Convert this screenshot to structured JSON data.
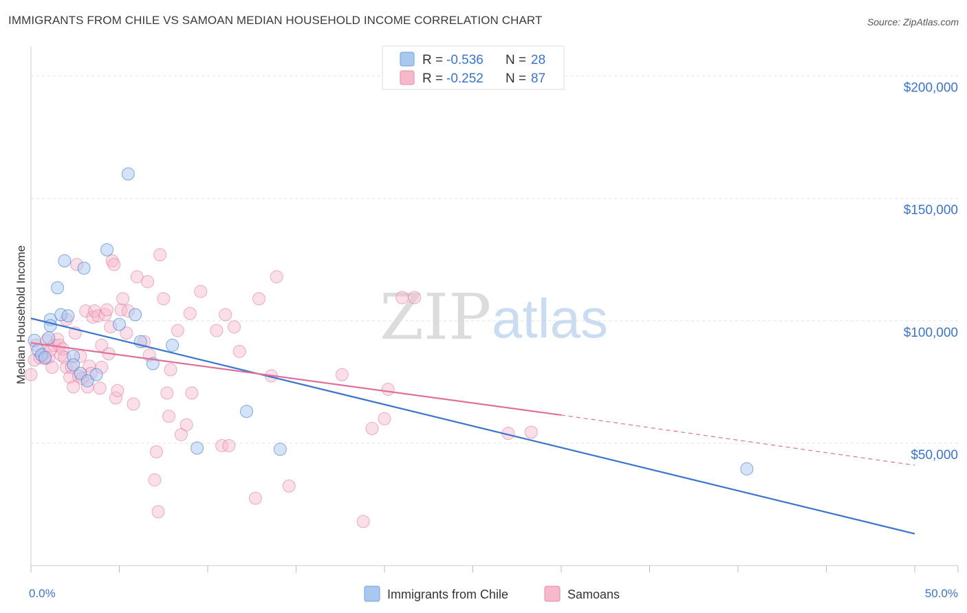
{
  "header": {
    "title": "IMMIGRANTS FROM CHILE VS SAMOAN MEDIAN HOUSEHOLD INCOME CORRELATION CHART",
    "source": "Source: ZipAtlas.com"
  },
  "watermark": {
    "part1": "ZIP",
    "part2": "atlas"
  },
  "stats": [
    {
      "r_label": "R =",
      "r": "-0.536",
      "n_label": "N =",
      "n": "28",
      "color": "#a9c8f0"
    },
    {
      "r_label": "R =",
      "r": "-0.252",
      "n_label": "N =",
      "n": "87",
      "color": "#f6b8cb"
    }
  ],
  "colors": {
    "blue": "#3a74cc",
    "pink": "#e07099",
    "blue_fill": "#a9c8f0",
    "pink_fill": "#f6b8cb",
    "grid": "#e4e4e4"
  },
  "chart_data": {
    "type": "scatter",
    "title": "IMMIGRANTS FROM CHILE VS SAMOAN MEDIAN HOUSEHOLD INCOME CORRELATION CHART",
    "xlabel": "",
    "ylabel": "Median Household Income",
    "xlim": [
      0,
      50
    ],
    "ylim": [
      0,
      210000
    ],
    "x_tick_labels": [
      "0.0%",
      "50.0%"
    ],
    "y_ticks": [
      50000,
      100000,
      150000,
      200000
    ],
    "y_tick_labels": [
      "$50,000",
      "$100,000",
      "$150,000",
      "$200,000"
    ],
    "grid": true,
    "legend_position": "bottom-center",
    "series": [
      {
        "name": "Immigrants from Chile",
        "r": -0.536,
        "n": 28,
        "trend": {
          "x": [
            0,
            50
          ],
          "y": [
            101000,
            13000
          ]
        },
        "points": [
          [
            0.2,
            92000
          ],
          [
            0.4,
            88000
          ],
          [
            0.6,
            86000
          ],
          [
            0.8,
            85000
          ],
          [
            1.0,
            93000
          ],
          [
            1.1,
            100500
          ],
          [
            1.1,
            98000
          ],
          [
            1.5,
            113500
          ],
          [
            1.7,
            102500
          ],
          [
            1.9,
            124500
          ],
          [
            2.1,
            102000
          ],
          [
            2.4,
            85500
          ],
          [
            2.4,
            82000
          ],
          [
            2.8,
            78500
          ],
          [
            3.0,
            121500
          ],
          [
            3.2,
            75500
          ],
          [
            3.7,
            78000
          ],
          [
            4.3,
            129000
          ],
          [
            5.0,
            98500
          ],
          [
            5.5,
            160000
          ],
          [
            5.9,
            102500
          ],
          [
            6.2,
            91500
          ],
          [
            6.9,
            82500
          ],
          [
            8.0,
            90000
          ],
          [
            9.4,
            48000
          ],
          [
            12.2,
            63000
          ],
          [
            14.1,
            47500
          ],
          [
            40.5,
            39500
          ]
        ]
      },
      {
        "name": "Samoans",
        "r": -0.252,
        "n": 87,
        "trend_solid": {
          "x": [
            0,
            30
          ],
          "y": [
            91000,
            61500
          ]
        },
        "trend_dashed": {
          "x": [
            30,
            50
          ],
          "y": [
            61500,
            41000
          ]
        },
        "points": [
          [
            0.0,
            78000
          ],
          [
            0.2,
            84000
          ],
          [
            0.3,
            90000
          ],
          [
            0.5,
            85000
          ],
          [
            0.7,
            86500
          ],
          [
            0.8,
            84500
          ],
          [
            0.9,
            92000
          ],
          [
            1.0,
            85000
          ],
          [
            1.1,
            88000
          ],
          [
            1.2,
            81000
          ],
          [
            1.3,
            90000
          ],
          [
            1.5,
            92500
          ],
          [
            1.6,
            90000
          ],
          [
            1.7,
            86000
          ],
          [
            1.8,
            88500
          ],
          [
            1.9,
            85000
          ],
          [
            2.0,
            81000
          ],
          [
            2.0,
            100500
          ],
          [
            2.2,
            77000
          ],
          [
            2.3,
            81000
          ],
          [
            2.4,
            73000
          ],
          [
            2.5,
            95000
          ],
          [
            2.6,
            123000
          ],
          [
            2.7,
            77500
          ],
          [
            2.8,
            85500
          ],
          [
            2.9,
            76500
          ],
          [
            3.1,
            104000
          ],
          [
            3.2,
            73000
          ],
          [
            3.3,
            81500
          ],
          [
            3.4,
            78500
          ],
          [
            3.5,
            101500
          ],
          [
            3.6,
            104000
          ],
          [
            3.8,
            102000
          ],
          [
            3.9,
            72500
          ],
          [
            4.0,
            81000
          ],
          [
            4.0,
            90000
          ],
          [
            4.2,
            102500
          ],
          [
            4.3,
            104500
          ],
          [
            4.4,
            86500
          ],
          [
            4.5,
            97500
          ],
          [
            4.6,
            124500
          ],
          [
            4.7,
            123000
          ],
          [
            4.8,
            68500
          ],
          [
            4.9,
            71500
          ],
          [
            5.1,
            104500
          ],
          [
            5.2,
            109000
          ],
          [
            5.4,
            95000
          ],
          [
            5.5,
            104000
          ],
          [
            5.8,
            66000
          ],
          [
            6.0,
            118000
          ],
          [
            6.4,
            91500
          ],
          [
            6.6,
            116000
          ],
          [
            6.7,
            86000
          ],
          [
            7.0,
            35000
          ],
          [
            7.1,
            46500
          ],
          [
            7.2,
            22000
          ],
          [
            7.3,
            127000
          ],
          [
            7.5,
            109000
          ],
          [
            7.7,
            70500
          ],
          [
            7.8,
            61000
          ],
          [
            7.9,
            80000
          ],
          [
            8.3,
            96000
          ],
          [
            8.5,
            53500
          ],
          [
            8.8,
            57500
          ],
          [
            9.0,
            103000
          ],
          [
            9.1,
            70500
          ],
          [
            9.6,
            112000
          ],
          [
            10.5,
            96000
          ],
          [
            10.8,
            49000
          ],
          [
            11.0,
            102500
          ],
          [
            11.2,
            49000
          ],
          [
            11.5,
            97500
          ],
          [
            11.8,
            87500
          ],
          [
            12.7,
            27500
          ],
          [
            12.9,
            109000
          ],
          [
            13.6,
            77500
          ],
          [
            13.9,
            118000
          ],
          [
            14.6,
            32500
          ],
          [
            17.6,
            78000
          ],
          [
            18.8,
            18000
          ],
          [
            19.3,
            56000
          ],
          [
            20.0,
            60000
          ],
          [
            20.2,
            72000
          ],
          [
            21.0,
            109500
          ],
          [
            21.7,
            109500
          ],
          [
            27.0,
            54000
          ],
          [
            28.3,
            54500
          ]
        ]
      }
    ]
  },
  "legend": {
    "items": [
      {
        "label": "Immigrants from Chile",
        "color": "#a9c8f0"
      },
      {
        "label": "Samoans",
        "color": "#f6b8cb"
      }
    ]
  }
}
